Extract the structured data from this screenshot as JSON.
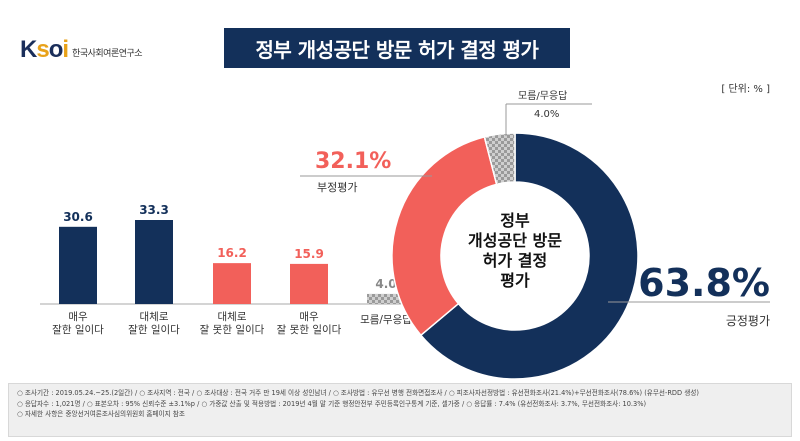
{
  "org": {
    "name": "한국사회여론연구소"
  },
  "footer": {
    "line1": "○ 조사기간 : 2019.05.24.~25.(2일간) / ○ 조사지역 : 전국 / ○ 조사대상 : 전국 거주 만 19세 이상 성인남녀 / ○ 조사방법 : 유무선 병행 전화면접조사 / ○ 피조사자선정방법 : 유선전화조사(21.4%)+무선전화조사(78.6%) (유무선-RDD 생성)",
    "line2": "○ 응답자수 : 1,021명 / ○ 표본오차 : 95% 신뢰수준 ±3.1%p / ○ 가중값 산출 및 적용방법 : 2019년 4월 말 기준 행정안전부 주민등록인구통계 기준, 셀가중 / ○ 응답률 : 7.4% (유선전화조사: 3.7%, 무선전화조사: 10.3%)",
    "line3": "○ 자세한 사항은 중앙선거여론조사심의위원회 홈페이지 참조"
  },
  "chart_data": [
    {
      "type": "bar",
      "title": "정부 개성공단 방문 허가 결정 평가",
      "unit": "[ 단위: % ]",
      "categories": [
        "매우\n잘한 일이다",
        "대체로\n잘한 일이다",
        "대체로\n잘 못한 일이다",
        "매우\n잘 못한 일이다",
        "모름/무응답"
      ],
      "values": [
        30.6,
        33.3,
        16.2,
        15.9,
        4.0
      ],
      "value_labels": [
        "30.6",
        "33.3",
        "16.2",
        "15.9",
        "4.0"
      ],
      "colors": [
        "#13305a",
        "#13305a",
        "#f2605a",
        "#f2605a",
        "#b5b5b5"
      ],
      "ylim": [
        0,
        40
      ],
      "grid": false
    },
    {
      "type": "pie",
      "donut": true,
      "center_label": "정부\n개성공단 방문\n허가 결정\n평가",
      "slices": [
        {
          "label": "긍정평가",
          "value": 63.8,
          "value_text": "63.8%",
          "color": "#13305a"
        },
        {
          "label": "부정평가",
          "value": 32.1,
          "value_text": "32.1%",
          "color": "#f2605a"
        },
        {
          "label": "모름/무응답",
          "value": 4.0,
          "value_text": "4.0%",
          "color": "#b5b5b5"
        }
      ]
    }
  ]
}
